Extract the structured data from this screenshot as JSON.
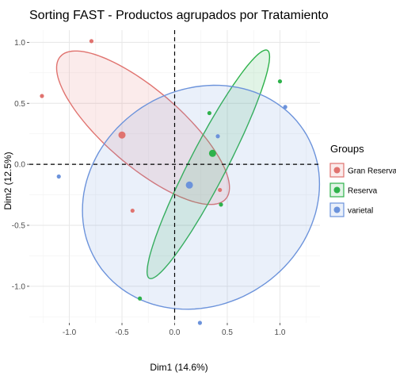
{
  "chart_data": {
    "type": "scatter",
    "title": "Sorting FAST - Productos agrupados por Tratamiento",
    "xlabel": "Dim1 (14.6%)",
    "ylabel": "Dim2 (12.5%)",
    "xlim": [
      -1.38,
      1.38
    ],
    "ylim": [
      -1.3,
      1.1
    ],
    "x_ticks": [
      -1.0,
      -0.5,
      0.0,
      0.5,
      1.0
    ],
    "x_tick_labels": [
      "-1.0",
      "-0.5",
      "0.0",
      "0.5",
      "1.0"
    ],
    "y_ticks": [
      -1.0,
      -0.5,
      0.0,
      0.5,
      1.0
    ],
    "y_tick_labels": [
      "-1.0",
      "-0.5",
      "0.0",
      "0.5",
      "1.0"
    ],
    "grid": true,
    "reference_lines": {
      "x": 0,
      "y": 0,
      "style": "dashed"
    },
    "legend": {
      "title": "Groups",
      "position": "right"
    },
    "series": [
      {
        "name": "Gran Reserva",
        "color": "#E0736F",
        "points": [
          [
            -0.79,
            1.01
          ],
          [
            -1.26,
            0.56
          ],
          [
            -0.4,
            -0.38
          ],
          [
            0.43,
            -0.21
          ]
        ],
        "centroid": [
          -0.5,
          0.24
        ],
        "ellipse": {
          "cx": -0.3,
          "cy": 0.3,
          "rx": 0.98,
          "ry": 0.33,
          "angle_deg": -35.5
        }
      },
      {
        "name": "Reserva",
        "color": "#2EB24B",
        "points": [
          [
            1.0,
            0.68
          ],
          [
            0.33,
            0.42
          ],
          [
            0.44,
            -0.33
          ],
          [
            -0.33,
            -1.1
          ]
        ],
        "centroid": [
          0.36,
          0.09
        ],
        "ellipse": {
          "cx": 0.32,
          "cy": 0.0,
          "rx": 1.09,
          "ry": 0.17,
          "angle_deg": 58.9
        }
      },
      {
        "name": "varietal",
        "color": "#6C93DB",
        "points": [
          [
            1.05,
            0.47
          ],
          [
            0.41,
            0.23
          ],
          [
            -1.1,
            -0.1
          ],
          [
            0.24,
            -1.3
          ]
        ],
        "centroid": [
          0.14,
          -0.17
        ],
        "ellipse": {
          "cx": 0.25,
          "cy": -0.27,
          "rx": 1.14,
          "ry": 0.9,
          "angle_deg": 15.0
        }
      }
    ]
  }
}
